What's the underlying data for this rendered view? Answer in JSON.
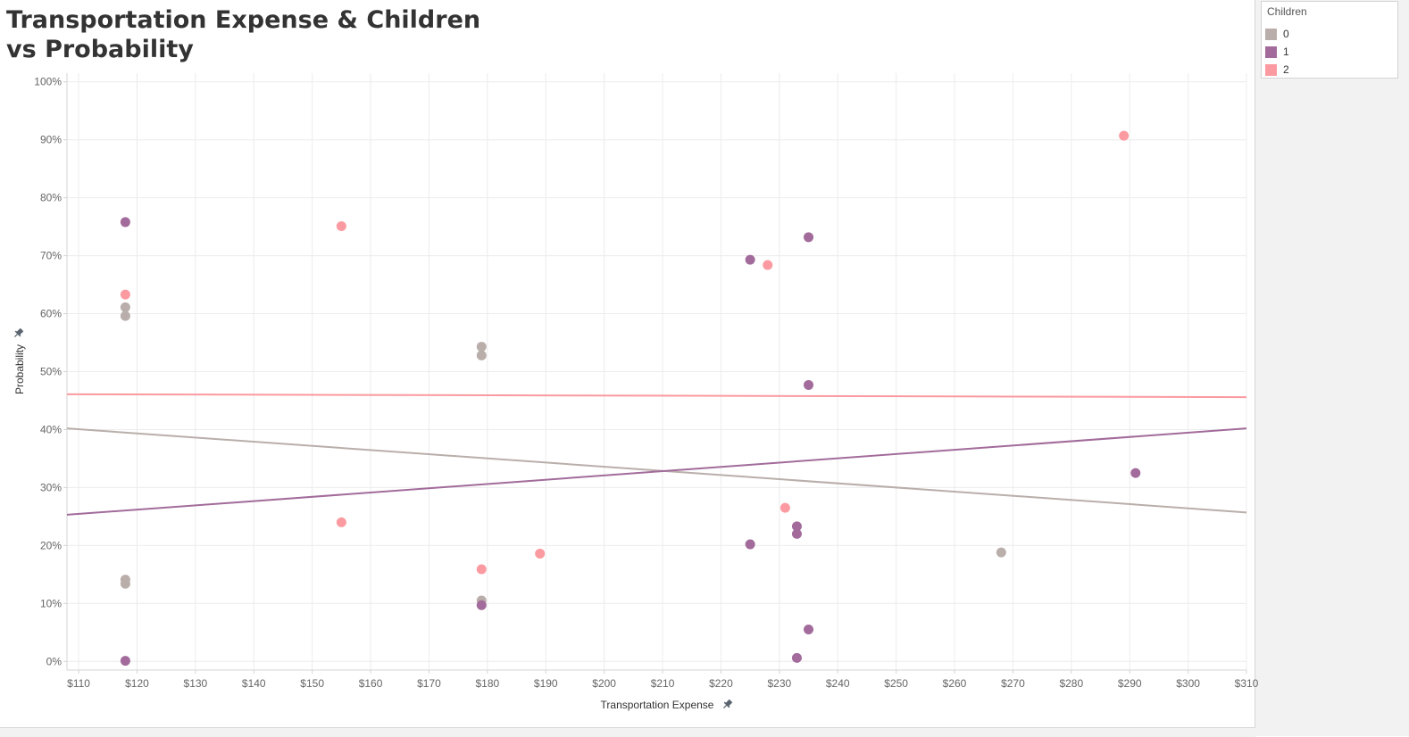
{
  "title": "Transportation Expense & Children vs Probability",
  "legend": {
    "title": "Children",
    "items": [
      {
        "label": "0",
        "color": "#b9aeaa"
      },
      {
        "label": "1",
        "color": "#a26b9b"
      },
      {
        "label": "2",
        "color": "#fb9aa0"
      }
    ]
  },
  "chart_data": {
    "type": "scatter",
    "title": "Transportation Expense & Children vs Probability",
    "xlabel": "Transportation Expense",
    "ylabel": "Probability",
    "xlim": [
      108,
      310
    ],
    "ylim": [
      -1.5,
      101.5
    ],
    "x_ticks": [
      110,
      120,
      130,
      140,
      150,
      160,
      170,
      180,
      190,
      200,
      210,
      220,
      230,
      240,
      250,
      260,
      270,
      280,
      290,
      300,
      310
    ],
    "x_tick_labels": [
      "$110",
      "$120",
      "$130",
      "$140",
      "$150",
      "$160",
      "$170",
      "$180",
      "$190",
      "$200",
      "$210",
      "$220",
      "$230",
      "$240",
      "$250",
      "$260",
      "$270",
      "$280",
      "$290",
      "$300",
      "$310"
    ],
    "y_ticks": [
      0,
      10,
      20,
      30,
      40,
      50,
      60,
      70,
      80,
      90,
      100
    ],
    "y_tick_labels": [
      "0%",
      "10%",
      "20%",
      "30%",
      "40%",
      "50%",
      "60%",
      "70%",
      "80%",
      "90%",
      "100%"
    ],
    "grid": true,
    "legend_position": "top-right",
    "series": [
      {
        "name": "0",
        "color": "#b9aeaa",
        "points": [
          [
            118,
            61.1
          ],
          [
            118,
            59.6
          ],
          [
            118,
            14.1
          ],
          [
            118,
            13.4
          ],
          [
            179,
            54.3
          ],
          [
            179,
            52.8
          ],
          [
            179,
            10.5
          ],
          [
            268,
            18.8
          ]
        ],
        "trend": [
          [
            108,
            40.2
          ],
          [
            310,
            25.7
          ]
        ]
      },
      {
        "name": "1",
        "color": "#a26b9b",
        "points": [
          [
            118,
            75.8
          ],
          [
            118,
            0.1
          ],
          [
            179,
            9.7
          ],
          [
            225,
            69.3
          ],
          [
            225,
            20.2
          ],
          [
            233,
            23.3
          ],
          [
            233,
            22.0
          ],
          [
            233,
            0.6
          ],
          [
            235,
            73.2
          ],
          [
            235,
            47.7
          ],
          [
            235,
            5.5
          ],
          [
            291,
            32.5
          ]
        ],
        "trend": [
          [
            108,
            25.3
          ],
          [
            310,
            40.2
          ]
        ]
      },
      {
        "name": "2",
        "color": "#fb9aa0",
        "points": [
          [
            118,
            63.3
          ],
          [
            155,
            75.1
          ],
          [
            155,
            24.0
          ],
          [
            179,
            15.9
          ],
          [
            189,
            18.6
          ],
          [
            228,
            68.4
          ],
          [
            231,
            26.5
          ],
          [
            289,
            90.7
          ]
        ],
        "trend": [
          [
            108,
            46.1
          ],
          [
            310,
            45.6
          ]
        ]
      }
    ]
  }
}
